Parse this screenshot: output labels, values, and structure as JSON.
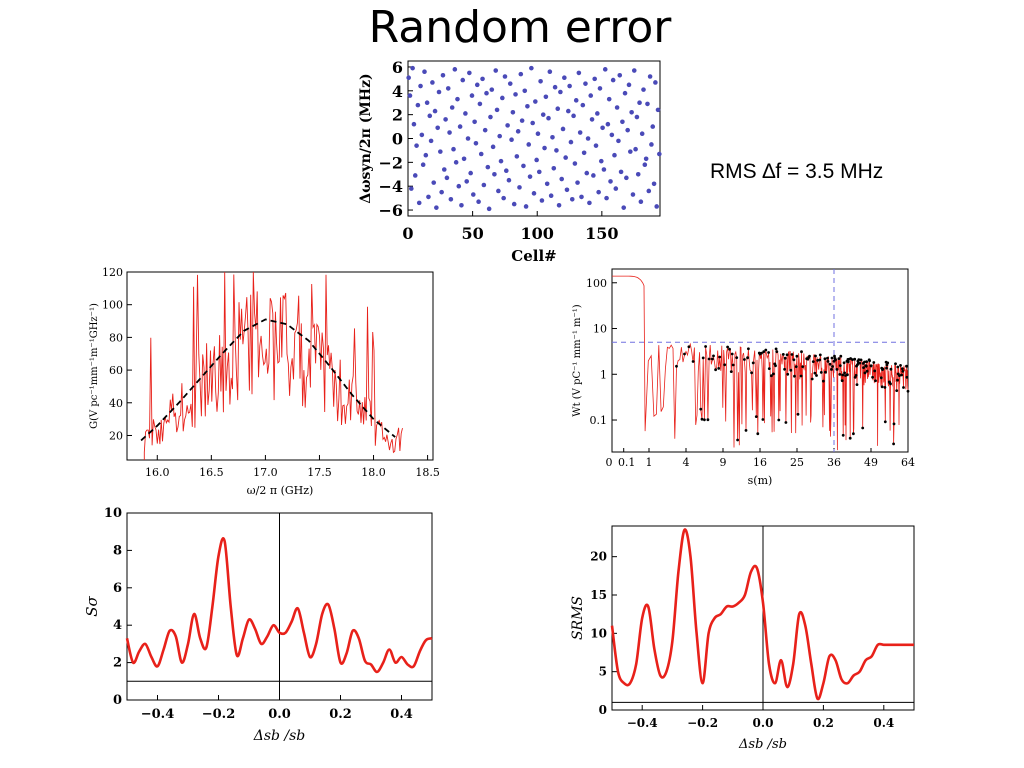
{
  "page": {
    "title": "Random error",
    "rms_label": "RMS ∆f = 3.5 MHz"
  },
  "chart_data": [
    {
      "id": "scatter",
      "type": "scatter",
      "xlabel": "Cell#",
      "ylabel": "Δωsyn/2π (MHz)",
      "xlim": [
        0,
        195
      ],
      "ylim": [
        -6.5,
        6.5
      ],
      "xticks": [
        0,
        50,
        100,
        150
      ],
      "yticks": [
        -6,
        -4,
        -2,
        0,
        2,
        4,
        6
      ],
      "marker_color": "#4a4ab8",
      "y": [
        5.1,
        3.6,
        -4.2,
        5.9,
        1.2,
        -3.1,
        -0.6,
        2.8,
        -5.4,
        4.4,
        0.3,
        -2.2,
        5.6,
        -1.4,
        3.0,
        -4.9,
        1.9,
        -0.2,
        4.7,
        -3.7,
        2.3,
        -5.8,
        0.9,
        3.9,
        -1.1,
        -4.5,
        5.3,
        -2.6,
        1.6,
        -3.3,
        4.2,
        0.5,
        -5.1,
        2.6,
        -0.9,
        5.8,
        -2.0,
        3.3,
        -4.0,
        1.0,
        -5.6,
        4.9,
        -1.7,
        2.1,
        -3.6,
        0.0,
        5.5,
        -2.9,
        3.6,
        -4.7,
        1.4,
        -0.4,
        4.5,
        -5.3,
        2.9,
        -1.3,
        5.0,
        -3.9,
        0.7,
        3.8,
        -2.4,
        -5.9,
        1.8,
        4.1,
        -0.7,
        -3.0,
        5.7,
        2.4,
        -4.4,
        0.2,
        -1.9,
        3.4,
        -5.0,
        5.2,
        -2.7,
        1.1,
        -3.5,
        4.6,
        -0.1,
        2.2,
        -5.5,
        3.7,
        -1.5,
        0.6,
        -4.1,
        5.4,
        1.5,
        -2.3,
        4.0,
        -5.7,
        2.7,
        -0.5,
        -3.2,
        5.9,
        1.3,
        -4.6,
        3.1,
        -1.8,
        0.4,
        -2.8,
        4.8,
        -5.2,
        2.0,
        -0.8,
        3.5,
        -3.8,
        1.7,
        5.6,
        -4.8,
        0.1,
        -2.5,
        4.3,
        -1.0,
        2.5,
        -5.6,
        3.9,
        -3.4,
        0.8,
        5.1,
        -1.6,
        -4.3,
        2.3,
        4.4,
        -0.3,
        -5.1,
        1.9,
        -2.1,
        3.2,
        -3.7,
        5.5,
        0.5,
        -4.9,
        2.8,
        -1.2,
        4.6,
        -2.9,
        0.0,
        -5.4,
        3.6,
        1.6,
        -3.1,
        5.0,
        -0.6,
        2.1,
        -4.5,
        4.2,
        -1.9,
        0.9,
        -2.6,
        5.8,
        -5.0,
        1.2,
        3.3,
        -3.6,
        0.3,
        4.9,
        -1.4,
        -4.2,
        2.6,
        -0.2,
        5.3,
        -2.8,
        1.4,
        -5.8,
        3.8,
        -3.3,
        0.7,
        4.5,
        -1.1,
        2.2,
        -4.7,
        5.7,
        -0.9,
        1.8,
        -3.0,
        3.0,
        -5.3,
        0.4,
        4.1,
        -2.2,
        -1.7,
        2.9,
        -4.4,
        5.2,
        -0.5,
        1.0,
        -3.8,
        4.7,
        -5.7,
        2.4,
        -1.3
      ]
    },
    {
      "id": "impedance",
      "type": "line",
      "xlabel": "ω/2 π (GHz)",
      "ylabel": "G(V pc⁻¹mm⁻¹m⁻¹GHz⁻¹)",
      "xlim": [
        15.72,
        18.55
      ],
      "ylim": [
        5,
        120
      ],
      "xticks": [
        16.0,
        16.5,
        17.0,
        17.5,
        18.0,
        18.5
      ],
      "yticks": [
        20,
        40,
        60,
        80,
        100,
        120
      ],
      "signal_color": "#e8211a",
      "fit_color": "#000000",
      "fit": {
        "x": [
          15.85,
          16.0,
          16.2,
          16.4,
          16.6,
          16.8,
          17.0,
          17.2,
          17.4,
          17.6,
          17.8,
          18.0,
          18.2
        ],
        "y": [
          17,
          26,
          40,
          55,
          70,
          84,
          91,
          88,
          78,
          62,
          45,
          30,
          19
        ]
      }
    },
    {
      "id": "wake",
      "type": "line",
      "xlabel": "s(m)",
      "ylabel": "Wt (V pC⁻¹ mm⁻¹ m⁻¹)",
      "x_scale": "sqrt",
      "y_scale": "log",
      "xlim": [
        0,
        64
      ],
      "ylim": [
        0.02,
        200
      ],
      "xticks": [
        0,
        0.1,
        1,
        4,
        9,
        16,
        25,
        36,
        49,
        64
      ],
      "xtick_labels": [
        "0",
        "0.1",
        "1",
        "4",
        "9",
        "16",
        "25",
        "36",
        "49",
        "64"
      ],
      "yticks": [
        0.1,
        1,
        10,
        100
      ],
      "ytick_labels": [
        "0.1",
        "1",
        "10",
        "100"
      ],
      "reference_lines": {
        "y": 5,
        "x": 36
      },
      "reference_color": "#7070e0",
      "signal_color": "#e8211a",
      "marker_color": "#000000"
    },
    {
      "id": "s_sigma",
      "type": "line",
      "xlabel": "Δsb /sb",
      "ylabel": "Sσ",
      "xlim": [
        -0.5,
        0.5
      ],
      "ylim": [
        0,
        10
      ],
      "xticks": [
        -0.4,
        -0.2,
        0.0,
        0.2,
        0.4
      ],
      "yticks": [
        0,
        2,
        4,
        6,
        8,
        10
      ],
      "baseline": 1,
      "line_color": "#e8211a",
      "series": [
        {
          "x": [
            -0.5,
            -0.48,
            -0.46,
            -0.44,
            -0.42,
            -0.4,
            -0.38,
            -0.36,
            -0.34,
            -0.32,
            -0.3,
            -0.28,
            -0.26,
            -0.24,
            -0.22,
            -0.2,
            -0.18,
            -0.16,
            -0.14,
            -0.12,
            -0.1,
            -0.08,
            -0.06,
            -0.04,
            -0.02,
            0.0,
            0.02,
            0.04,
            0.06,
            0.08,
            0.1,
            0.12,
            0.14,
            0.16,
            0.18,
            0.2,
            0.22,
            0.24,
            0.26,
            0.28,
            0.3,
            0.32,
            0.34,
            0.36,
            0.38,
            0.4,
            0.42,
            0.44,
            0.46,
            0.48,
            0.5
          ],
          "y": [
            3.3,
            2.0,
            2.6,
            3.0,
            2.3,
            1.8,
            2.7,
            3.7,
            3.4,
            2.0,
            3.0,
            4.6,
            3.3,
            2.8,
            5.0,
            7.7,
            8.5,
            5.0,
            2.4,
            3.3,
            4.3,
            3.8,
            3.0,
            3.4,
            4.0,
            3.6,
            3.6,
            4.2,
            4.9,
            3.6,
            2.3,
            3.0,
            4.6,
            5.1,
            3.8,
            2.0,
            2.5,
            3.7,
            3.3,
            2.1,
            1.9,
            1.5,
            2.0,
            2.7,
            2.0,
            2.3,
            1.9,
            1.8,
            2.6,
            3.2,
            3.3
          ]
        }
      ]
    },
    {
      "id": "s_rms",
      "type": "line",
      "xlabel": "Δsb /sb",
      "ylabel": "SRMS",
      "xlim": [
        -0.5,
        0.5
      ],
      "ylim": [
        0,
        24
      ],
      "xticks": [
        -0.4,
        -0.2,
        0.0,
        0.2,
        0.4
      ],
      "yticks": [
        0,
        5,
        10,
        15,
        20
      ],
      "baseline": 1,
      "line_color": "#e8211a",
      "series": [
        {
          "x": [
            -0.5,
            -0.48,
            -0.46,
            -0.44,
            -0.42,
            -0.4,
            -0.38,
            -0.36,
            -0.34,
            -0.32,
            -0.3,
            -0.28,
            -0.26,
            -0.24,
            -0.22,
            -0.2,
            -0.18,
            -0.16,
            -0.14,
            -0.12,
            -0.1,
            -0.08,
            -0.06,
            -0.04,
            -0.02,
            0.0,
            0.02,
            0.04,
            0.06,
            0.08,
            0.1,
            0.12,
            0.14,
            0.16,
            0.18,
            0.2,
            0.22,
            0.24,
            0.26,
            0.28,
            0.3,
            0.32,
            0.34,
            0.36,
            0.38,
            0.4,
            0.42,
            0.44,
            0.46,
            0.48,
            0.5
          ],
          "y": [
            11,
            5,
            3.5,
            3.5,
            6,
            12,
            13.5,
            8,
            4.5,
            5,
            9,
            18,
            23.5,
            20,
            10,
            3.5,
            10,
            12,
            12.5,
            13.5,
            13.5,
            14,
            15,
            18,
            18.5,
            14,
            6,
            3.5,
            6.5,
            3,
            6,
            12.5,
            11,
            6,
            1.5,
            3.5,
            7,
            6.5,
            4,
            3.5,
            4.5,
            5,
            6.5,
            7,
            8.5,
            8.5,
            8.5,
            8.5,
            8.5,
            8.5,
            8.5
          ]
        }
      ]
    }
  ]
}
